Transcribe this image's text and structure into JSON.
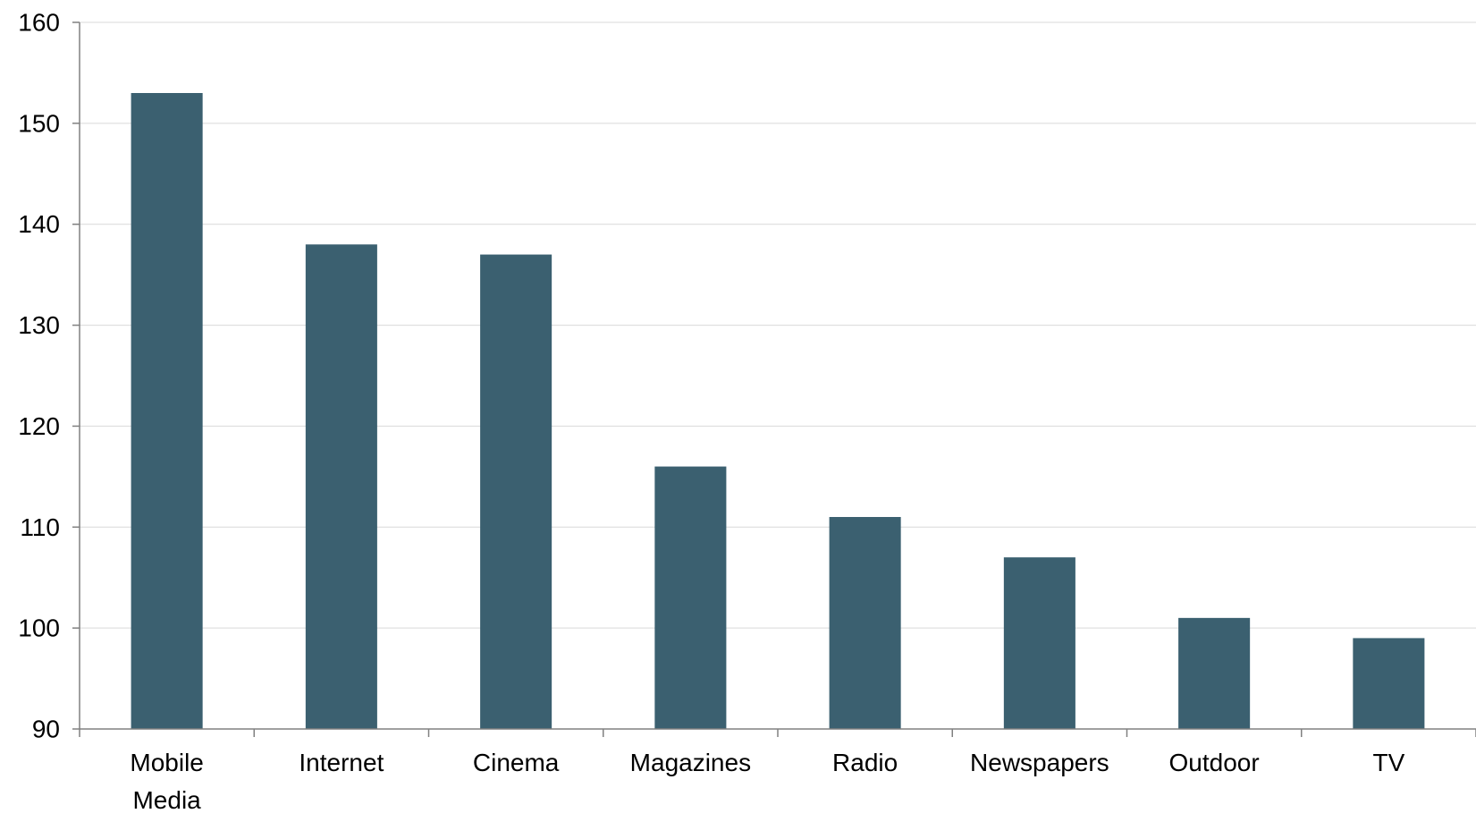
{
  "chart_data": {
    "type": "bar",
    "title": "",
    "xlabel": "",
    "ylabel": "",
    "categories": [
      [
        "Mobile",
        "Media"
      ],
      [
        "Internet"
      ],
      [
        "Cinema"
      ],
      [
        "Magazines"
      ],
      [
        "Radio"
      ],
      [
        "Newspapers"
      ],
      [
        "Outdoor"
      ],
      [
        "TV"
      ]
    ],
    "values": [
      153,
      138,
      137,
      116,
      111,
      107,
      101,
      99
    ],
    "ylim": [
      90,
      160
    ],
    "yticks": [
      90,
      100,
      110,
      120,
      130,
      140,
      150,
      160
    ],
    "grid": true,
    "legend": "none",
    "colors": {
      "bar": "#3b6070",
      "grid": "#d9d9d9",
      "axis": "#808080"
    }
  }
}
